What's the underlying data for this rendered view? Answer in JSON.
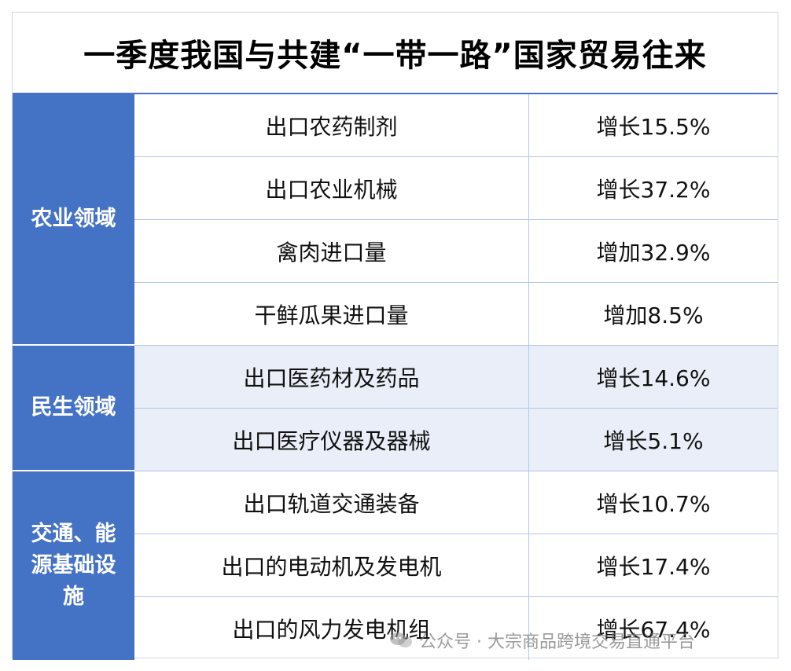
{
  "title": "一季度我国与共建“一带一路”国家贸易往来",
  "categories": [
    {
      "label": "农业领域"
    },
    {
      "label": "民生领域"
    },
    {
      "label": "交通、能源基础设施"
    }
  ],
  "rows": [
    {
      "item": "出口农药制剂",
      "value": "增长15.5%"
    },
    {
      "item": "出口农业机械",
      "value": "增长37.2%"
    },
    {
      "item": "禽肉进口量",
      "value": "增加32.9%"
    },
    {
      "item": "干鲜瓜果进口量",
      "value": "增加8.5%"
    },
    {
      "item": "出口医药材及药品",
      "value": "增长14.6%"
    },
    {
      "item": "出口医疗仪器及器械",
      "value": "增长5.1%"
    },
    {
      "item": "出口轨道交通装备",
      "value": "增长10.7%"
    },
    {
      "item": "出口的电动机及发电机",
      "value": "增长17.4%"
    },
    {
      "item": "出口的风力发电机组",
      "value": "增长67.4%"
    }
  ],
  "watermark": {
    "text": "公众号 · 大宗商品跨境交易直通平台",
    "icon": "wechat-icon"
  },
  "colors": {
    "category_bg": "#4472c4",
    "shaded_row": "#e9eef8",
    "grid_line": "#b4c6e7"
  }
}
